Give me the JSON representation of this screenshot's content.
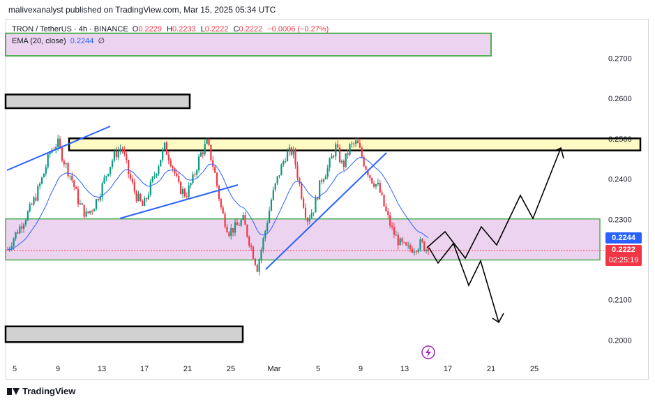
{
  "header": {
    "publisher_line": "malivexanalyst published on TradingView.com, Mar 15, 2025 05:34 UTC"
  },
  "legend": {
    "symbol": "TRON / TetherUS · 4h · BINANCE",
    "open_key": "O",
    "open": "0.2229",
    "high_key": "H",
    "high": "0.2233",
    "low_key": "L",
    "low": "0.2222",
    "close_key": "C",
    "close": "0.2222",
    "change": "−0.0006 (−0.27%)",
    "ema_label": "EMA (20, close)",
    "ema_value": "0.2244",
    "ema_suffix": "∅"
  },
  "price_tags": {
    "ema": {
      "value": "0.2244",
      "color": "#2962ff"
    },
    "last": {
      "value": "0.2222",
      "countdown": "02:25:19",
      "color": "#f23645"
    }
  },
  "footer": {
    "brand": "TradingView"
  },
  "colors": {
    "up": "#089981",
    "down": "#f23645",
    "ema": "#2962ff",
    "zone_fill": "#ecd3ef",
    "zone_border": "#4caf50",
    "resistance_fill": "#fff9c4",
    "gray_zone_fill": "#d1d1d1",
    "trendline": "#2962ff",
    "projection": "#000000"
  },
  "chart_data": {
    "type": "candlestick",
    "symbol": "TRON / TetherUS",
    "interval": "4h",
    "exchange": "BINANCE",
    "y_axis": {
      "ylim": [
        0.1945,
        0.2795
      ],
      "ticks": [
        "0.2000",
        "0.2100",
        "0.2200",
        "0.2300",
        "0.2400",
        "0.2500",
        "0.2600",
        "0.2700"
      ]
    },
    "x_axis": {
      "ticks": [
        "5",
        "9",
        "13",
        "17",
        "21",
        "25",
        "Mar",
        "5",
        "9",
        "13",
        "17",
        "21",
        "25"
      ]
    },
    "ema_period": 20,
    "close_path": [
      0.2225,
      0.226,
      0.229,
      0.232,
      0.236,
      0.241,
      0.247,
      0.249,
      0.244,
      0.24,
      0.234,
      0.231,
      0.233,
      0.237,
      0.242,
      0.246,
      0.248,
      0.241,
      0.236,
      0.233,
      0.238,
      0.243,
      0.248,
      0.244,
      0.238,
      0.236,
      0.24,
      0.246,
      0.249,
      0.242,
      0.232,
      0.227,
      0.228,
      0.23,
      0.224,
      0.218,
      0.226,
      0.235,
      0.241,
      0.246,
      0.247,
      0.238,
      0.23,
      0.233,
      0.24,
      0.243,
      0.248,
      0.243,
      0.248,
      0.249,
      0.244,
      0.24,
      0.238,
      0.232,
      0.227,
      0.224,
      0.2225,
      0.223,
      0.224,
      0.2222
    ],
    "zones": [
      {
        "name": "top-purple-zone",
        "y_range": [
          0.2706,
          0.2762
        ]
      },
      {
        "name": "upper-gray-zone",
        "y_range": [
          0.2576,
          0.261
        ]
      },
      {
        "name": "resistance-zone",
        "y_range": [
          0.2471,
          0.2501
        ]
      },
      {
        "name": "support-zone",
        "y_range": [
          0.2199,
          0.2301
        ]
      },
      {
        "name": "lower-gray-zone",
        "y_range": [
          0.1995,
          0.2034
        ]
      }
    ],
    "trendlines": [
      {
        "name": "trendline-1"
      },
      {
        "name": "trendline-2"
      },
      {
        "name": "trendline-3"
      }
    ],
    "projections": [
      {
        "name": "bullish-projection"
      },
      {
        "name": "bearish-projection"
      }
    ]
  }
}
